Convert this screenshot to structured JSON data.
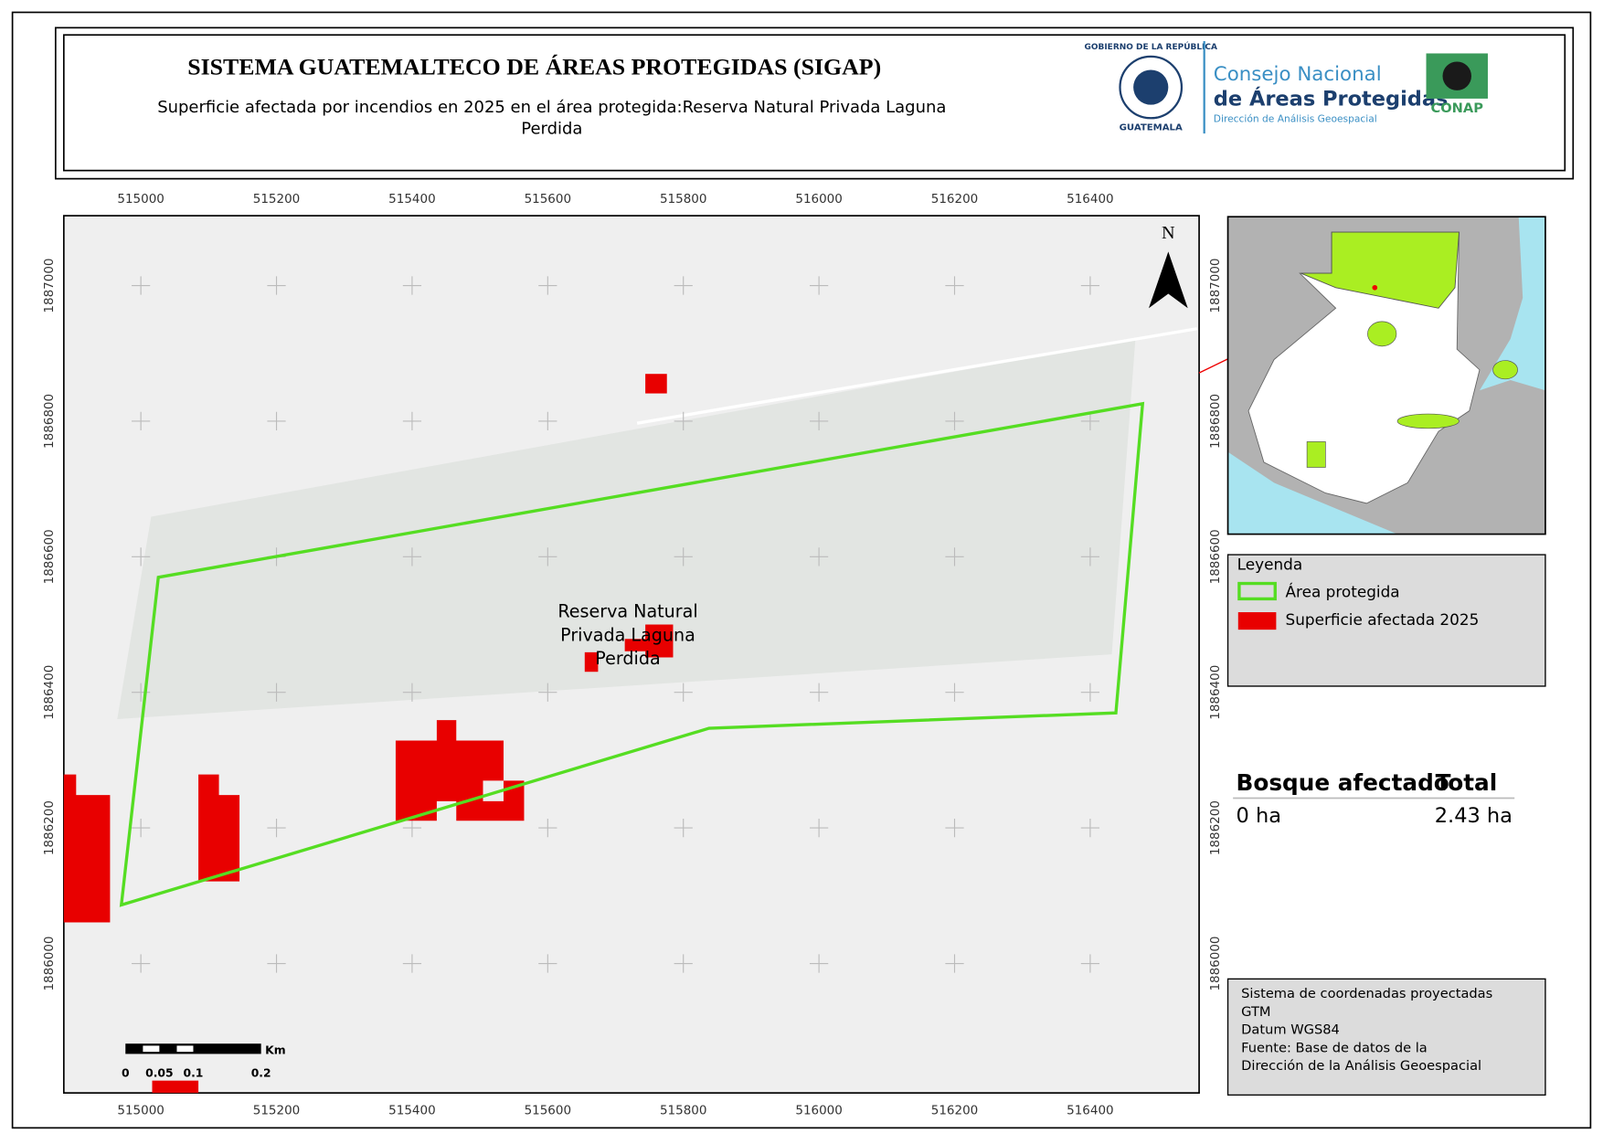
{
  "header": {
    "title": "SISTEMA GUATEMALTECO DE ÁREAS PROTEGIDAS  (SIGAP)",
    "subtitle_lines": [
      "Superficie afectada por incendios en 2025 en el área protegida:Reserva Natural Privada Laguna",
      "Perdida"
    ]
  },
  "logos": {
    "seal_top": "GOBIERNO DE LA REPÚBLICA",
    "seal_bottom": "GUATEMALA",
    "council_line1": "Consejo Nacional",
    "council_line2": "de Áreas Protegidas",
    "council_line3": "Dirección de Análisis Geoespacial",
    "conap": "CONAP"
  },
  "map": {
    "x_ticks": [
      515000,
      515200,
      515400,
      515600,
      515800,
      516000,
      516200,
      516400
    ],
    "y_ticks": [
      1886000,
      1886200,
      1886400,
      1886600,
      1886800,
      1887000
    ],
    "area_label_lines": [
      "Reserva Natural",
      "Privada Laguna",
      "Perdida"
    ],
    "north": "N",
    "scale_bar": {
      "unit": "Km",
      "labels": [
        "0",
        "0.05",
        "0.1",
        "0.2"
      ]
    }
  },
  "legend": {
    "title": "Leyenda",
    "items": [
      "Área protegida",
      "Superficie afectada 2025"
    ]
  },
  "summary": {
    "headers": [
      "Bosque afectado",
      "Total"
    ],
    "values": [
      "0 ha",
      "2.43 ha"
    ]
  },
  "notes": [
    "Sistema de coordenadas proyectadas",
    "GTM",
    "Datum WGS84",
    "Fuente: Base de datos de la",
    "Dirección de la Análisis Geoespacial"
  ]
}
